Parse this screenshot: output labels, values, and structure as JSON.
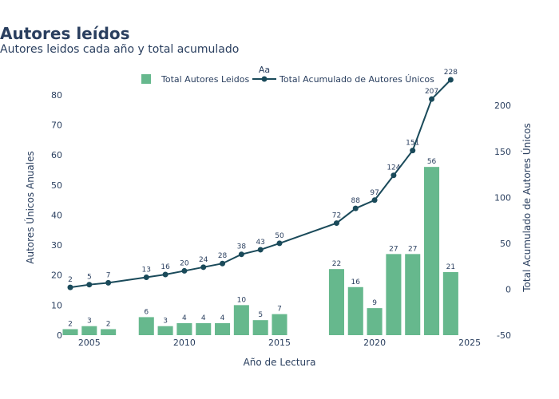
{
  "chart_data": {
    "type": "bar+line",
    "title": "Autores leídos",
    "subtitle": "Autores leidos cada año y total acumulado",
    "xlabel": "Año de Lectura",
    "ylabel_left": "Autores Únicos Anuales",
    "ylabel_right": "Total Acumulado de Autores Únicos",
    "legend_title": "Aa",
    "legend_position": "top-center",
    "grid": false,
    "x_ticks": [
      2005,
      2010,
      2015,
      2020,
      2025
    ],
    "x_range": [
      2004,
      2026
    ],
    "y_left_range": [
      0,
      85
    ],
    "y_left_ticks": [
      0,
      10,
      20,
      30,
      40,
      50,
      60,
      70,
      80
    ],
    "y_right_range": [
      -50,
      228
    ],
    "y_right_ticks": [
      -50,
      0,
      50,
      100,
      150,
      200
    ],
    "series": [
      {
        "name": "Total Autores Leidos",
        "type": "bar",
        "axis": "left",
        "color": "#66b88d",
        "x": [
          2004,
          2005,
          2006,
          2008,
          2009,
          2010,
          2011,
          2012,
          2013,
          2014,
          2015,
          2018,
          2019,
          2020,
          2021,
          2022,
          2023,
          2024
        ],
        "values": [
          2,
          3,
          2,
          6,
          3,
          4,
          4,
          4,
          10,
          5,
          7,
          22,
          16,
          9,
          27,
          27,
          56,
          21
        ]
      },
      {
        "name": "Total Acumulado de Autores Únicos",
        "type": "line",
        "axis": "right",
        "color": "#1a4a5a",
        "x": [
          2004,
          2005,
          2006,
          2008,
          2009,
          2010,
          2011,
          2012,
          2013,
          2014,
          2015,
          2018,
          2019,
          2020,
          2021,
          2022,
          2023,
          2024
        ],
        "values": [
          2,
          5,
          7,
          13,
          16,
          20,
          24,
          28,
          38,
          43,
          50,
          72,
          88,
          97,
          124,
          151,
          207,
          228
        ]
      }
    ]
  }
}
